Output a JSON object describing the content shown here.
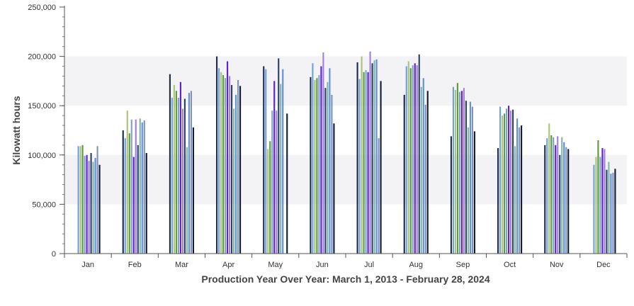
{
  "chart_data": {
    "type": "bar",
    "title": "",
    "xlabel": "Production Year Over Year: March 1, 2013 - February 28, 2024",
    "ylabel": "Kilowatt hours",
    "ylim": [
      0,
      250000
    ],
    "yticks": [
      0,
      50000,
      100000,
      150000,
      200000,
      250000
    ],
    "ytick_labels": [
      "0",
      "50,000",
      "100,000",
      "150,000",
      "200,000",
      "250,000"
    ],
    "grid": "alternating bands",
    "legend": "none",
    "categories": [
      "Jan",
      "Feb",
      "Mar",
      "Apr",
      "May",
      "Jun",
      "Jul",
      "Aug",
      "Sep",
      "Oct",
      "Nov",
      "Dec"
    ],
    "series_colors": [
      "#1b2a4a",
      "#6f9fd8",
      "#a9c47a",
      "#5a9a3c",
      "#7fa0c8",
      "#5b1fd1",
      "#a27de0",
      "#2a3f63",
      "#7fb5a8",
      "#5f8ed6",
      "#7d8fbf",
      "#0f1a33"
    ],
    "series": [
      {
        "values": [
          null,
          125000,
          182000,
          200000,
          190000,
          179000,
          194000,
          161000,
          119000,
          107000,
          110000,
          null
        ]
      },
      {
        "values": [
          109000,
          117000,
          158000,
          188000,
          187000,
          193000,
          177000,
          190000,
          169000,
          149000,
          117000,
          90000
        ]
      },
      {
        "values": [
          109000,
          145000,
          171000,
          184000,
          106000,
          176000,
          200000,
          195000,
          166000,
          140000,
          132000,
          98000
        ]
      },
      {
        "values": [
          110000,
          122000,
          165000,
          181000,
          114000,
          178000,
          184000,
          188000,
          173000,
          142000,
          120000,
          115000
        ]
      },
      {
        "values": [
          99000,
          136000,
          158000,
          178000,
          145000,
          181000,
          186000,
          191000,
          164000,
          147000,
          118000,
          98000
        ]
      },
      {
        "values": [
          100000,
          98000,
          174000,
          195000,
          175000,
          190000,
          184000,
          193000,
          165000,
          150000,
          110000,
          107000
        ]
      },
      {
        "values": [
          94000,
          136000,
          147000,
          180000,
          145000,
          204000,
          205000,
          191000,
          168000,
          145000,
          119000,
          106000
        ]
      },
      {
        "values": [
          102000,
          110000,
          157000,
          171000,
          198000,
          168000,
          193000,
          202000,
          155000,
          146000,
          100000,
          85000
        ]
      },
      {
        "values": [
          93000,
          137000,
          108000,
          147000,
          172000,
          174000,
          196000,
          169000,
          128000,
          109000,
          118000,
          93000
        ]
      },
      {
        "values": [
          97000,
          133000,
          163000,
          161000,
          187000,
          188000,
          197000,
          178000,
          154000,
          137000,
          113000,
          81000
        ]
      },
      {
        "values": [
          109000,
          135000,
          165000,
          176000,
          null,
          161000,
          117000,
          151000,
          149000,
          128000,
          108000,
          82000
        ]
      },
      {
        "values": [
          90000,
          102000,
          128000,
          170000,
          142000,
          132000,
          175000,
          165000,
          124000,
          130000,
          106000,
          86000
        ]
      }
    ]
  }
}
